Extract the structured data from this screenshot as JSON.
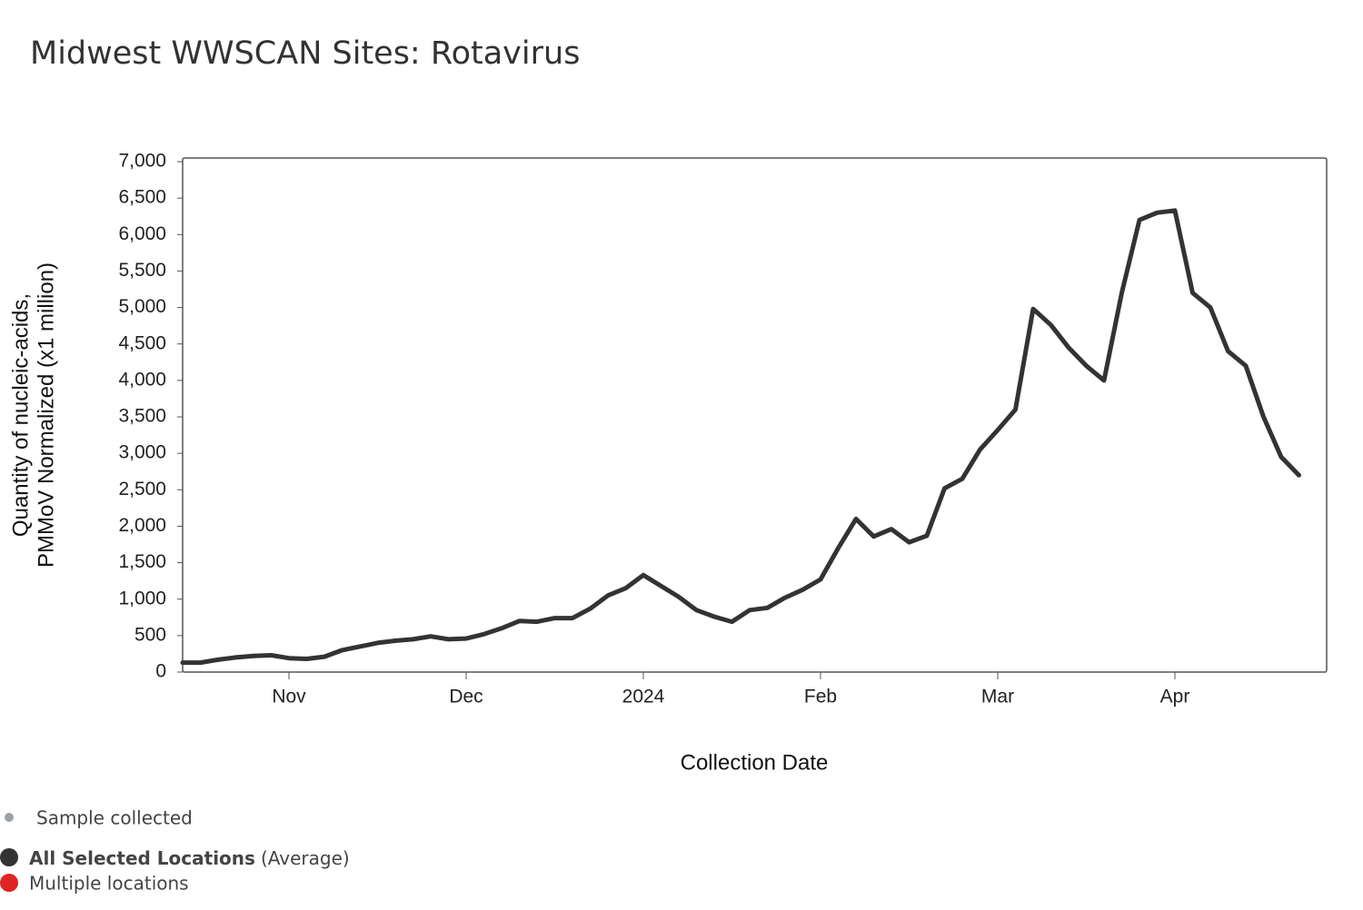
{
  "chart_data": {
    "type": "line",
    "title": "Midwest WWSCAN Sites: Rotavirus",
    "xlabel": "Collection Date",
    "ylabel": [
      "Quantity of nucleic-acids,",
      "PMMoV Normalized (x1 million)"
    ],
    "categories": [
      null,
      null,
      null,
      null,
      null,
      null,
      "Nov",
      null,
      null,
      null,
      null,
      null,
      null,
      null,
      null,
      null,
      "Dec",
      null,
      null,
      null,
      null,
      null,
      null,
      null,
      null,
      null,
      "2024",
      null,
      null,
      null,
      null,
      null,
      null,
      null,
      null,
      null,
      "Feb",
      null,
      null,
      null,
      null,
      null,
      null,
      null,
      null,
      null,
      "Mar",
      null,
      null,
      null,
      null,
      null,
      null,
      null,
      null,
      null,
      "Apr",
      null,
      null,
      null,
      null,
      null,
      null,
      null
    ],
    "series": [
      {
        "name": "All Selected Locations",
        "note": "(Average)",
        "color": "#333333",
        "values": [
          130,
          130,
          170,
          200,
          220,
          230,
          190,
          180,
          210,
          300,
          350,
          400,
          430,
          450,
          490,
          450,
          460,
          520,
          600,
          700,
          690,
          740,
          740,
          870,
          1050,
          1150,
          1330,
          1180,
          1030,
          850,
          760,
          690,
          850,
          880,
          1020,
          1130,
          1270,
          1700,
          2100,
          1860,
          1960,
          1780,
          1870,
          2520,
          2650,
          3050,
          3320,
          3600,
          4980,
          4760,
          4450,
          4200,
          4000,
          5200,
          6200,
          6300,
          6330,
          5200,
          5000,
          4400,
          4200,
          3500,
          2950,
          2700
        ]
      }
    ],
    "legend_extra": [
      {
        "label": "Sample collected",
        "color": "#9aa0a6"
      },
      {
        "label": "Multiple locations",
        "color": "#e02424"
      }
    ],
    "ylim": [
      0,
      7000
    ],
    "yticks": [
      0,
      500,
      {
        "value": 1000,
        "label": "1,000"
      },
      {
        "value": 1500,
        "label": "1,500"
      },
      {
        "value": 2000,
        "label": "2,000"
      },
      {
        "value": 2500,
        "label": "2,500"
      },
      {
        "value": 3000,
        "label": "3,000"
      },
      {
        "value": 3500,
        "label": "3,500"
      },
      {
        "value": 4000,
        "label": "4,000"
      },
      {
        "value": 4500,
        "label": "4,500"
      },
      {
        "value": 5000,
        "label": "5,000"
      },
      {
        "value": 5500,
        "label": "5,500"
      },
      {
        "value": 6000,
        "label": "6,000"
      },
      {
        "value": 6500,
        "label": "6,500"
      },
      {
        "value": 7000,
        "label": "7,000"
      }
    ],
    "grid": false
  }
}
